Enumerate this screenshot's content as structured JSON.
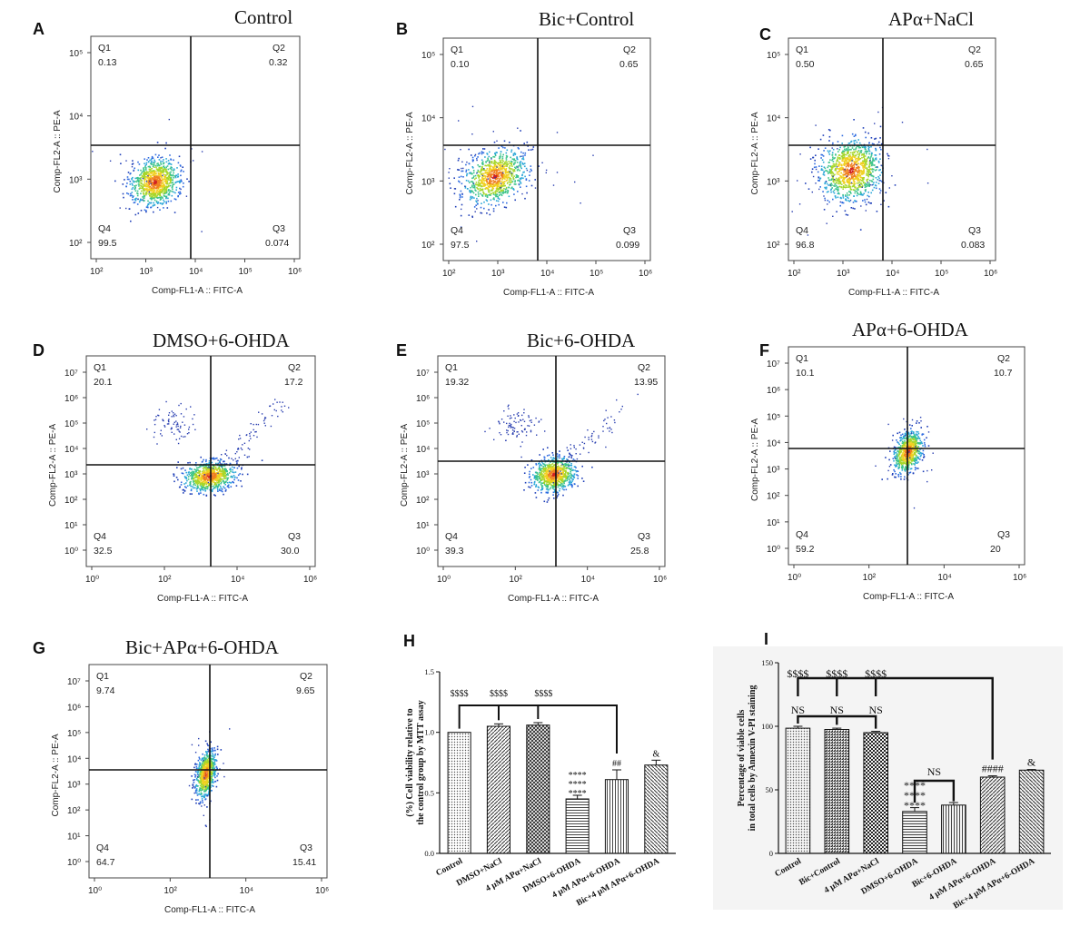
{
  "flow_panels": [
    {
      "label": "A",
      "title": "Control",
      "xlabel": "Comp-FL1-A :: FITC-A",
      "ylabel": "Comp-FL2-A :: PE-A",
      "x_ticks": [
        "10²",
        "10³",
        "10⁴",
        "10⁵",
        "10⁶"
      ],
      "y_ticks": [
        "10²",
        "10³",
        "10⁴",
        "10⁵"
      ],
      "q1_label": "Q1",
      "q1": "0.13",
      "q2_label": "Q2",
      "q2": "0.32",
      "q3_label": "Q3",
      "q3": "0.074",
      "q4_label": "Q4",
      "q4": "99.5"
    },
    {
      "label": "B",
      "title": "Bic+Control",
      "xlabel": "Comp-FL1-A :: FITC-A",
      "ylabel": "Comp-FL2-A :: PE-A",
      "x_ticks": [
        "10²",
        "10³",
        "10⁴",
        "10⁵",
        "10⁶"
      ],
      "y_ticks": [
        "10²",
        "10³",
        "10⁴",
        "10⁵"
      ],
      "q1_label": "Q1",
      "q1": "0.10",
      "q2_label": "Q2",
      "q2": "0.65",
      "q3_label": "Q3",
      "q3": "0.099",
      "q4_label": "Q4",
      "q4": "97.5"
    },
    {
      "label": "C",
      "title": "APα+NaCl",
      "xlabel": "Comp-FL1-A :: FITC-A",
      "ylabel": "Comp-FL2-A :: PE-A",
      "x_ticks": [
        "10²",
        "10³",
        "10⁴",
        "10⁵",
        "10⁶"
      ],
      "y_ticks": [
        "10²",
        "10³",
        "10⁴",
        "10⁵"
      ],
      "q1_label": "Q1",
      "q1": "0.50",
      "q2_label": "Q2",
      "q2": "0.65",
      "q3_label": "Q3",
      "q3": "0.083",
      "q4_label": "Q4",
      "q4": "96.8"
    },
    {
      "label": "D",
      "title": "DMSO+6-OHDA",
      "xlabel": "Comp-FL1-A :: FITC-A",
      "ylabel": "Comp-FL2-A :: PE-A",
      "x_ticks": [
        "10⁰",
        "10²",
        "10⁴",
        "10⁶"
      ],
      "y_ticks": [
        "10⁰",
        "10¹",
        "10²",
        "10³",
        "10⁴",
        "10⁵",
        "10⁶",
        "10⁷"
      ],
      "q1_label": "Q1",
      "q1": "20.1",
      "q2_label": "Q2",
      "q2": "17.2",
      "q3_label": "Q3",
      "q3": "30.0",
      "q4_label": "Q4",
      "q4": "32.5"
    },
    {
      "label": "E",
      "title": "Bic+6-OHDA",
      "xlabel": "Comp-FL1-A :: FITC-A",
      "ylabel": "Comp-FL2-A :: PE-A",
      "x_ticks": [
        "10⁰",
        "10²",
        "10⁴",
        "10⁶"
      ],
      "y_ticks": [
        "10⁰",
        "10¹",
        "10²",
        "10³",
        "10⁴",
        "10⁵",
        "10⁶",
        "10⁷"
      ],
      "q1_label": "Q1",
      "q1": "19.32",
      "q2_label": "Q2",
      "q2": "13.95",
      "q3_label": "Q3",
      "q3": "25.8",
      "q4_label": "Q4",
      "q4": "39.3"
    },
    {
      "label": "F",
      "title": "APα+6-OHDA",
      "xlabel": "Comp-FL1-A :: FITC-A",
      "ylabel": "Comp-FL2-A :: PE-A",
      "x_ticks": [
        "10⁰",
        "10²",
        "10⁴",
        "10⁶"
      ],
      "y_ticks": [
        "10⁰",
        "10¹",
        "10²",
        "10³",
        "10⁴",
        "10⁵",
        "10⁶",
        "10⁷"
      ],
      "q1_label": "Q1",
      "q1": "10.1",
      "q2_label": "Q2",
      "q2": "10.7",
      "q3_label": "Q3",
      "q3": "20",
      "q4_label": "Q4",
      "q4": "59.2"
    },
    {
      "label": "G",
      "title": "Bic+APα+6-OHDA",
      "xlabel": "Comp-FL1-A :: FITC-A",
      "ylabel": "Comp-FL2-A :: PE-A",
      "x_ticks": [
        "10⁰",
        "10²",
        "10⁴",
        "10⁶"
      ],
      "y_ticks": [
        "10⁰",
        "10¹",
        "10²",
        "10³",
        "10⁴",
        "10⁵",
        "10⁶",
        "10⁷"
      ],
      "q1_label": "Q1",
      "q1": "9.74",
      "q2_label": "Q2",
      "q2": "9.65",
      "q3_label": "Q3",
      "q3": "15.41",
      "q4_label": "Q4",
      "q4": "64.7"
    }
  ],
  "chart_data": [
    {
      "panel": "H",
      "type": "bar",
      "ylabel_line1": "(%) Cell viability relative to",
      "ylabel_line2": "the control group by MTT assay",
      "ylim": [
        0,
        1.5
      ],
      "yticks": [
        "0.0",
        "0.5",
        "1.0",
        "1.5"
      ],
      "categories": [
        "Control",
        "DMSO+NaCl",
        "4 μM APα+NaCl",
        "DMSO+6-OHDA",
        "4 μM APα+6-OHDA",
        "Bic+4 μM APα+6-OHDA"
      ],
      "values": [
        1.0,
        1.05,
        1.06,
        0.45,
        0.61,
        0.73
      ],
      "errors": [
        0.0,
        0.02,
        0.02,
        0.03,
        0.08,
        0.04
      ],
      "bracket_labels": [
        "$$$$",
        "$$$$",
        "$$$$"
      ],
      "bar_annotations": [
        "",
        "",
        "",
        "****\n****\n****",
        "##",
        "&"
      ]
    },
    {
      "panel": "I",
      "type": "bar",
      "ylabel_line1": "Percentage of viable cells",
      "ylabel_line2": "in total cells by Annexin V-PI staining",
      "ylim": [
        0,
        150
      ],
      "yticks": [
        "0",
        "50",
        "100",
        "150"
      ],
      "categories": [
        "Control",
        "Bic+Control",
        "4 μM APα+NaCl",
        "DMSO+6-OHDA",
        "Bic+6-OHDA",
        "4 μM APα+6-OHDA",
        "Bic+4 μM APα+6-OHDA"
      ],
      "values": [
        98.5,
        97.5,
        95.0,
        33.0,
        38.0,
        60.0,
        65.5
      ],
      "errors": [
        1.5,
        1.0,
        1.0,
        3.0,
        2.0,
        1.0,
        0.5
      ],
      "bracket_labels": [
        "$$$$",
        "$$$$",
        "$$$$"
      ],
      "ns_labels": [
        "NS",
        "NS",
        "NS",
        "NS"
      ],
      "bar_annotations": [
        "",
        "",
        "",
        "****\n****\n****",
        "",
        "####",
        "&"
      ]
    }
  ]
}
